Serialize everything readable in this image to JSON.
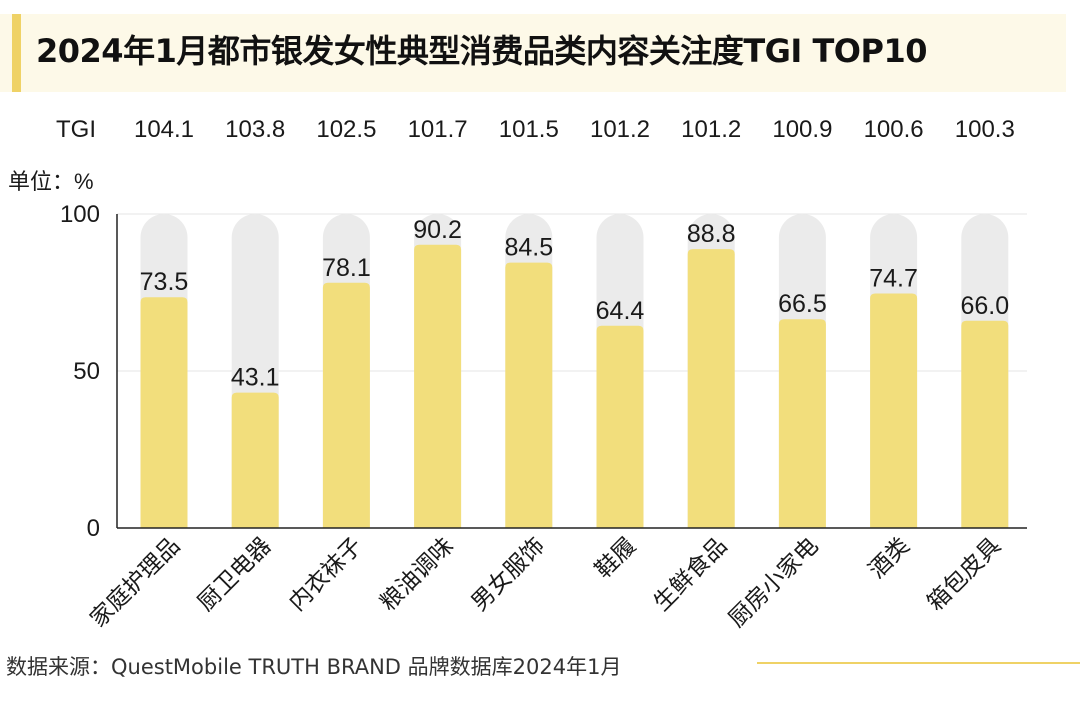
{
  "title": "2024年1月都市银发女性典型消费品类内容关注度TGI TOP10",
  "source": "数据来源：QuestMobile TRUTH BRAND 品牌数据库2024年1月",
  "colors": {
    "bar": "#f2de7c",
    "track": "#ebebeb",
    "accent": "#efd266",
    "axis": "#222222",
    "grid": "#e6e6e6"
  },
  "chart_data": {
    "type": "bar",
    "title": "2024年1月都市银发女性典型消费品类内容关注度TGI TOP10",
    "unit_label": "单位：%",
    "ylabel": "",
    "xlabel": "",
    "ylim": [
      0,
      100
    ],
    "yticks": [
      "0",
      "50",
      "100"
    ],
    "categories": [
      "家庭护理品",
      "厨卫电器",
      "内衣袜子",
      "粮油调味",
      "男女服饰",
      "鞋履",
      "生鲜食品",
      "厨房小家电",
      "酒类",
      "箱包皮具"
    ],
    "values": [
      73.5,
      43.1,
      78.1,
      90.2,
      84.5,
      64.4,
      88.8,
      66.5,
      74.7,
      66.0
    ],
    "value_labels": [
      "73.5",
      "43.1",
      "78.1",
      "90.2",
      "84.5",
      "64.4",
      "88.8",
      "66.5",
      "74.7",
      "66.0"
    ],
    "tgi_label": "TGI",
    "tgi": [
      "104.1",
      "103.8",
      "102.5",
      "101.7",
      "101.5",
      "101.2",
      "101.2",
      "100.9",
      "100.6",
      "100.3"
    ]
  }
}
